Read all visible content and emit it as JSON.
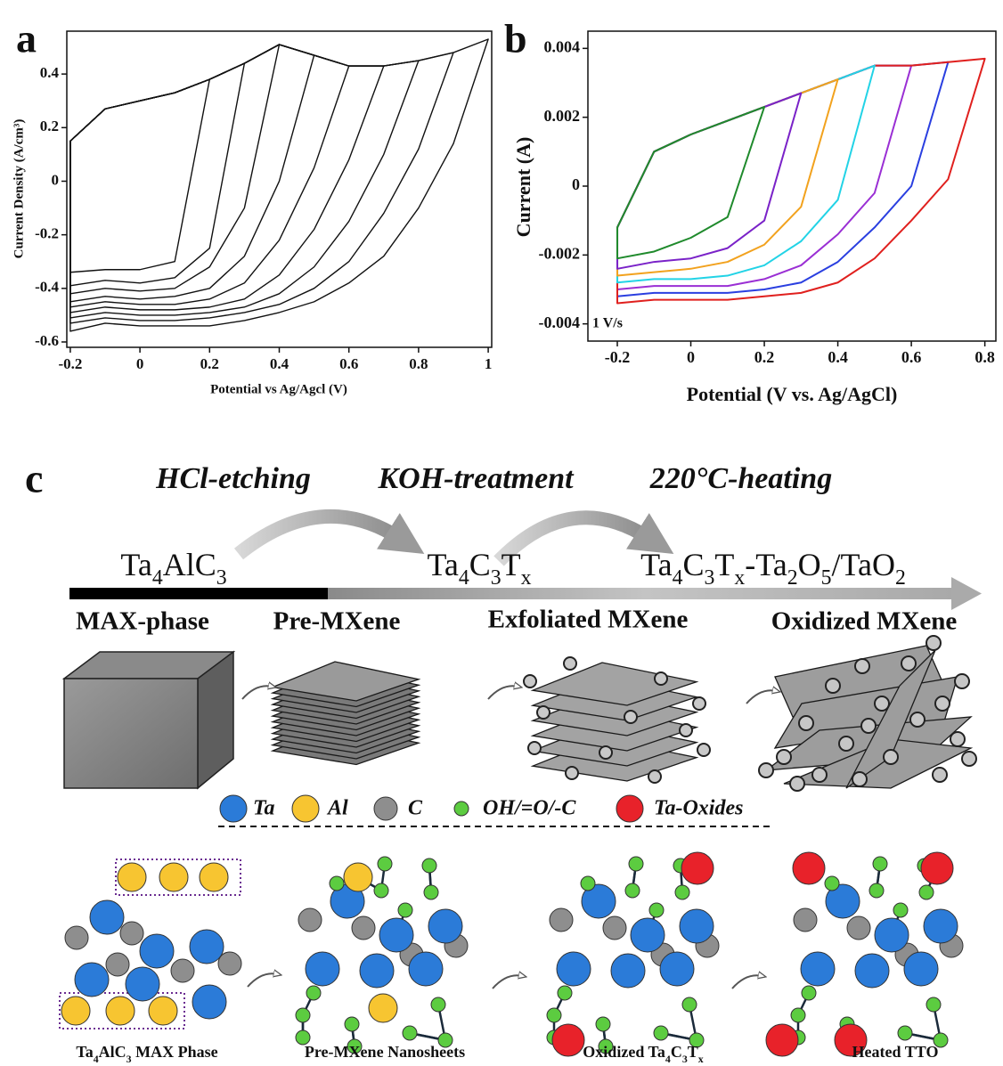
{
  "chart_data": [
    {
      "type": "line",
      "panel": "a",
      "xlabel": "Potential vs Ag/Agcl (V)",
      "ylabel": "Current Density (A/cm³)",
      "xlim": [
        -0.21,
        1.01
      ],
      "ylim": [
        -0.62,
        0.56
      ],
      "xticks": [
        -0.2,
        0,
        0.2,
        0.4,
        0.6,
        0.8,
        1
      ],
      "yticks": [
        -0.6,
        -0.4,
        -0.2,
        0,
        0.2,
        0.4
      ],
      "series": [
        {
          "color": "#111111",
          "x": [
            -0.2,
            -0.1,
            0,
            0.1,
            0.2,
            0.1,
            0,
            -0.1,
            -0.2
          ],
          "values": [
            0.15,
            0.27,
            0.3,
            0.33,
            0.38,
            -0.3,
            -0.33,
            -0.33,
            -0.34
          ]
        },
        {
          "color": "#111111",
          "x": [
            -0.2,
            -0.1,
            0,
            0.1,
            0.2,
            0.3,
            0.2,
            0.1,
            0,
            -0.1,
            -0.2
          ],
          "values": [
            0.15,
            0.27,
            0.3,
            0.33,
            0.38,
            0.44,
            -0.25,
            -0.36,
            -0.38,
            -0.37,
            -0.39
          ]
        },
        {
          "color": "#111111",
          "x": [
            -0.2,
            -0.1,
            0,
            0.1,
            0.2,
            0.3,
            0.4,
            0.3,
            0.2,
            0.1,
            0,
            -0.1,
            -0.2
          ],
          "values": [
            0.15,
            0.27,
            0.3,
            0.33,
            0.38,
            0.44,
            0.51,
            -0.1,
            -0.32,
            -0.4,
            -0.41,
            -0.4,
            -0.42
          ]
        },
        {
          "color": "#111111",
          "x": [
            -0.2,
            -0.1,
            0,
            0.1,
            0.2,
            0.3,
            0.4,
            0.5,
            0.4,
            0.3,
            0.2,
            0.1,
            0,
            -0.1,
            -0.2
          ],
          "values": [
            0.15,
            0.27,
            0.3,
            0.33,
            0.38,
            0.44,
            0.51,
            0.47,
            0.0,
            -0.28,
            -0.4,
            -0.43,
            -0.44,
            -0.43,
            -0.45
          ]
        },
        {
          "color": "#111111",
          "x": [
            -0.2,
            -0.1,
            0,
            0.1,
            0.2,
            0.3,
            0.4,
            0.5,
            0.6,
            0.5,
            0.4,
            0.3,
            0.2,
            0.1,
            0,
            -0.1,
            -0.2
          ],
          "values": [
            0.15,
            0.27,
            0.3,
            0.33,
            0.38,
            0.44,
            0.51,
            0.47,
            0.43,
            0.05,
            -0.22,
            -0.38,
            -0.44,
            -0.46,
            -0.46,
            -0.45,
            -0.47
          ]
        },
        {
          "color": "#111111",
          "x": [
            -0.2,
            -0.1,
            0,
            0.1,
            0.2,
            0.3,
            0.4,
            0.5,
            0.6,
            0.7,
            0.6,
            0.5,
            0.4,
            0.3,
            0.2,
            0.1,
            0,
            -0.1,
            -0.2
          ],
          "values": [
            0.15,
            0.27,
            0.3,
            0.33,
            0.38,
            0.44,
            0.51,
            0.47,
            0.43,
            0.43,
            0.08,
            -0.18,
            -0.35,
            -0.44,
            -0.47,
            -0.48,
            -0.48,
            -0.47,
            -0.49
          ]
        },
        {
          "color": "#111111",
          "x": [
            -0.2,
            -0.1,
            0,
            0.1,
            0.2,
            0.3,
            0.4,
            0.5,
            0.6,
            0.7,
            0.8,
            0.7,
            0.6,
            0.5,
            0.4,
            0.3,
            0.2,
            0.1,
            0,
            -0.1,
            -0.2
          ],
          "values": [
            0.15,
            0.27,
            0.3,
            0.33,
            0.38,
            0.44,
            0.51,
            0.47,
            0.43,
            0.43,
            0.45,
            0.1,
            -0.15,
            -0.32,
            -0.42,
            -0.47,
            -0.49,
            -0.5,
            -0.5,
            -0.49,
            -0.51
          ]
        },
        {
          "color": "#111111",
          "x": [
            -0.2,
            -0.1,
            0,
            0.1,
            0.2,
            0.3,
            0.4,
            0.5,
            0.6,
            0.7,
            0.8,
            0.9,
            0.8,
            0.7,
            0.6,
            0.5,
            0.4,
            0.3,
            0.2,
            0.1,
            0,
            -0.1,
            -0.2
          ],
          "values": [
            0.15,
            0.27,
            0.3,
            0.33,
            0.38,
            0.44,
            0.51,
            0.47,
            0.43,
            0.43,
            0.45,
            0.48,
            0.12,
            -0.12,
            -0.3,
            -0.4,
            -0.46,
            -0.49,
            -0.51,
            -0.52,
            -0.52,
            -0.51,
            -0.53
          ]
        },
        {
          "color": "#111111",
          "x": [
            -0.2,
            -0.1,
            0,
            0.1,
            0.2,
            0.3,
            0.4,
            0.5,
            0.6,
            0.7,
            0.8,
            0.9,
            1,
            0.9,
            0.8,
            0.7,
            0.6,
            0.5,
            0.4,
            0.3,
            0.2,
            0.1,
            0,
            -0.1,
            -0.2
          ],
          "values": [
            0.15,
            0.27,
            0.3,
            0.33,
            0.38,
            0.44,
            0.51,
            0.47,
            0.43,
            0.43,
            0.45,
            0.48,
            0.53,
            0.14,
            -0.1,
            -0.28,
            -0.38,
            -0.45,
            -0.49,
            -0.52,
            -0.54,
            -0.54,
            -0.54,
            -0.53,
            -0.56
          ]
        }
      ]
    },
    {
      "type": "line",
      "panel": "b",
      "xlabel": "Potential (V vs. Ag/AgCl)",
      "ylabel": "Current (A)",
      "annotation": "1 V/s",
      "xlim": [
        -0.28,
        0.83
      ],
      "ylim": [
        -0.0045,
        0.0045
      ],
      "xticks": [
        -0.2,
        0,
        0.2,
        0.4,
        0.6,
        0.8
      ],
      "yticks": [
        -0.004,
        -0.002,
        0,
        0.002,
        0.004
      ],
      "series": [
        {
          "color": "#9a2fd4",
          "x": [
            -0.2,
            -0.1,
            0,
            0.1,
            0.2,
            0.3,
            0.4,
            0.5,
            0.6,
            0.5,
            0.4,
            0.3,
            0.2,
            0.1,
            0,
            -0.1,
            -0.2
          ],
          "values": [
            -0.0012,
            0.001,
            0.0015,
            0.0019,
            0.0023,
            0.0027,
            0.0031,
            0.0035,
            0.0035,
            -0.0002,
            -0.0014,
            -0.0023,
            -0.0027,
            -0.0029,
            -0.0029,
            -0.0029,
            -0.003
          ]
        },
        {
          "color": "#2a3fe0",
          "x": [
            -0.2,
            -0.1,
            0,
            0.1,
            0.2,
            0.3,
            0.4,
            0.5,
            0.6,
            0.7,
            0.6,
            0.5,
            0.4,
            0.3,
            0.2,
            0.1,
            0,
            -0.1,
            -0.2
          ],
          "values": [
            -0.0012,
            0.001,
            0.0015,
            0.0019,
            0.0023,
            0.0027,
            0.0031,
            0.0035,
            0.0035,
            0.0036,
            0.0,
            -0.0012,
            -0.0022,
            -0.0028,
            -0.003,
            -0.0031,
            -0.0031,
            -0.0031,
            -0.0032
          ]
        },
        {
          "color": "#e0201e",
          "x": [
            -0.2,
            -0.1,
            0,
            0.1,
            0.2,
            0.3,
            0.4,
            0.5,
            0.6,
            0.7,
            0.8,
            0.7,
            0.6,
            0.5,
            0.4,
            0.3,
            0.2,
            0.1,
            0,
            -0.1,
            -0.2
          ],
          "values": [
            -0.0012,
            0.001,
            0.0015,
            0.0019,
            0.0023,
            0.0027,
            0.0031,
            0.0035,
            0.0035,
            0.0036,
            0.0037,
            0.0002,
            -0.001,
            -0.0021,
            -0.0028,
            -0.0031,
            -0.0032,
            -0.0033,
            -0.0033,
            -0.0033,
            -0.0034
          ]
        },
        {
          "color": "#22d3e6",
          "x": [
            -0.2,
            -0.1,
            0,
            0.1,
            0.2,
            0.3,
            0.4,
            0.5,
            0.4,
            0.3,
            0.2,
            0.1,
            0,
            -0.1,
            -0.2
          ],
          "values": [
            -0.0012,
            0.001,
            0.0015,
            0.0019,
            0.0023,
            0.0027,
            0.0031,
            0.0035,
            -0.0004,
            -0.0016,
            -0.0023,
            -0.0026,
            -0.0027,
            -0.0027,
            -0.0028
          ]
        },
        {
          "color": "#f2a21e",
          "x": [
            -0.2,
            -0.1,
            0,
            0.1,
            0.2,
            0.3,
            0.4,
            0.3,
            0.2,
            0.1,
            0,
            -0.1,
            -0.2
          ],
          "values": [
            -0.0012,
            0.001,
            0.0015,
            0.0019,
            0.0023,
            0.0027,
            0.0031,
            -0.0006,
            -0.0017,
            -0.0022,
            -0.0024,
            -0.0025,
            -0.0026
          ]
        },
        {
          "color": "#7a22c8",
          "x": [
            -0.2,
            -0.1,
            0,
            0.1,
            0.2,
            0.3,
            0.2,
            0.1,
            0,
            -0.1,
            -0.2
          ],
          "values": [
            -0.0012,
            0.001,
            0.0015,
            0.0019,
            0.0023,
            0.0027,
            -0.001,
            -0.0018,
            -0.0021,
            -0.0022,
            -0.0024
          ]
        },
        {
          "color": "#1f8a2c",
          "x": [
            -0.2,
            -0.1,
            0,
            0.1,
            0.2,
            0.1,
            0,
            -0.1,
            -0.2
          ],
          "values": [
            -0.0012,
            0.001,
            0.0015,
            0.0019,
            0.0023,
            -0.0009,
            -0.0015,
            -0.0019,
            -0.0021
          ]
        }
      ]
    }
  ],
  "schematic": {
    "panel": "c",
    "treatments": [
      "HCl-etching",
      "KOH-treatment",
      "220°C-heating"
    ],
    "formulas": [
      "Ta4AlC3",
      "Ta4C3Tx",
      "Ta4C3Tx-Ta2O5/TaO2"
    ],
    "stages": [
      "MAX-phase",
      "Pre-MXene",
      "Exfoliated MXene",
      "Oxidized MXene"
    ],
    "legend": [
      {
        "label": "Ta",
        "color": "#2b7bd8"
      },
      {
        "label": "Al",
        "color": "#f7c531"
      },
      {
        "label": "C",
        "color": "#8e8e8e"
      },
      {
        "label": "OH/=O/-C",
        "color": "#5ccc40"
      },
      {
        "label": "Ta-Oxides",
        "color": "#e8222a"
      }
    ],
    "structure_labels": [
      "Ta4AlC3 MAX Phase",
      "Pre-MXene Nanosheets",
      "Oxidized Ta4C3Tx",
      "Heated TTO"
    ]
  }
}
